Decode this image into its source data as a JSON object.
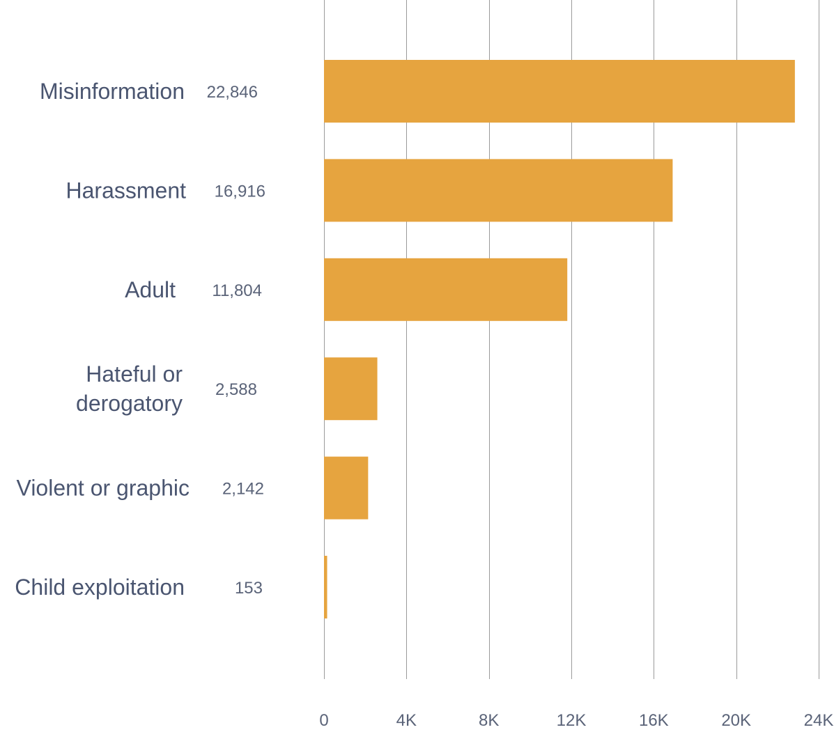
{
  "chart_data": {
    "type": "bar",
    "orientation": "horizontal",
    "categories": [
      [
        "Misinformation"
      ],
      [
        "Harassment"
      ],
      [
        "Adult"
      ],
      [
        "Hateful or",
        "derogatory"
      ],
      [
        "Violent or graphic"
      ],
      [
        "Child exploitation"
      ]
    ],
    "values": [
      22846,
      16916,
      11804,
      2588,
      2142,
      153
    ],
    "value_labels": [
      "22,846",
      "16,916",
      "11,804",
      "2,588",
      "2,142",
      "153"
    ],
    "xlim": [
      0,
      24000
    ],
    "xticks": [
      0,
      4000,
      8000,
      12000,
      16000,
      20000,
      24000
    ],
    "xtick_labels": [
      "0",
      "4K",
      "8K",
      "12K",
      "16K",
      "20K",
      "24K"
    ],
    "grid": true,
    "bar_color": "#e6a43f",
    "title": "",
    "xlabel": "",
    "ylabel": ""
  }
}
